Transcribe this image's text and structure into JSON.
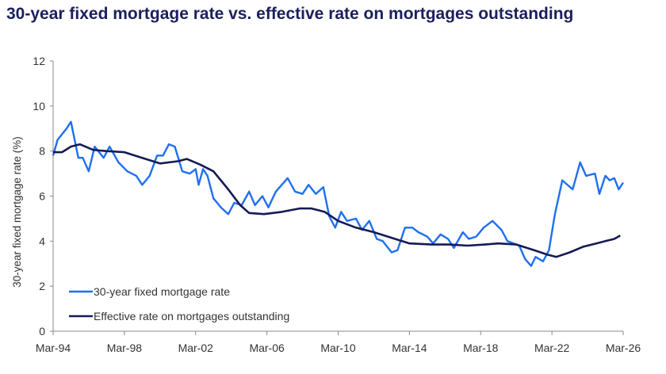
{
  "chart_data": {
    "type": "line",
    "title": "30-year fixed mortgage rate vs. effective rate on mortgages outstanding",
    "xlabel": "",
    "ylabel": "30-year fixed mortgage rate (%)",
    "ylim": [
      0,
      12
    ],
    "yticks": [
      "0",
      "2",
      "4",
      "6",
      "8",
      "10",
      "12"
    ],
    "xlim": [
      "1994-03",
      "2026-03"
    ],
    "xticks": [
      "Mar-94",
      "Mar-98",
      "Mar-02",
      "Mar-06",
      "Mar-10",
      "Mar-14",
      "Mar-18",
      "Mar-22",
      "Mar-26"
    ],
    "grid": false,
    "legend_position": "bottom-left",
    "series": [
      {
        "name": "30-year fixed mortgage rate",
        "color": "#1f6ff0",
        "points": [
          [
            "1994-03",
            7.8
          ],
          [
            "1994-06",
            8.5
          ],
          [
            "1994-12",
            9.0
          ],
          [
            "1995-03",
            9.3
          ],
          [
            "1995-08",
            7.7
          ],
          [
            "1995-11",
            7.7
          ],
          [
            "1996-03",
            7.1
          ],
          [
            "1996-07",
            8.2
          ],
          [
            "1997-01",
            7.7
          ],
          [
            "1997-05",
            8.2
          ],
          [
            "1997-11",
            7.5
          ],
          [
            "1998-05",
            7.1
          ],
          [
            "1998-11",
            6.9
          ],
          [
            "1999-03",
            6.5
          ],
          [
            "1999-08",
            6.9
          ],
          [
            "2000-01",
            7.8
          ],
          [
            "2000-05",
            7.8
          ],
          [
            "2000-09",
            8.3
          ],
          [
            "2001-01",
            8.2
          ],
          [
            "2001-06",
            7.1
          ],
          [
            "2001-11",
            7.0
          ],
          [
            "2002-03",
            7.2
          ],
          [
            "2002-05",
            6.5
          ],
          [
            "2002-08",
            7.2
          ],
          [
            "2002-11",
            6.9
          ],
          [
            "2003-03",
            5.9
          ],
          [
            "2003-08",
            5.5
          ],
          [
            "2004-01",
            5.2
          ],
          [
            "2004-05",
            5.7
          ],
          [
            "2004-10",
            5.6
          ],
          [
            "2005-03",
            6.2
          ],
          [
            "2005-07",
            5.6
          ],
          [
            "2005-12",
            6.0
          ],
          [
            "2006-04",
            5.5
          ],
          [
            "2006-09",
            6.2
          ],
          [
            "2007-05",
            6.8
          ],
          [
            "2007-10",
            6.2
          ],
          [
            "2008-03",
            6.1
          ],
          [
            "2008-07",
            6.5
          ],
          [
            "2008-12",
            6.1
          ],
          [
            "2009-05",
            6.4
          ],
          [
            "2009-09",
            5.1
          ],
          [
            "2010-01",
            4.6
          ],
          [
            "2010-05",
            5.3
          ],
          [
            "2010-09",
            4.9
          ],
          [
            "2011-03",
            5.0
          ],
          [
            "2011-07",
            4.5
          ],
          [
            "2011-12",
            4.9
          ],
          [
            "2012-05",
            4.1
          ],
          [
            "2012-09",
            4.0
          ],
          [
            "2013-03",
            3.5
          ],
          [
            "2013-07",
            3.6
          ],
          [
            "2013-12",
            4.6
          ],
          [
            "2014-05",
            4.6
          ],
          [
            "2014-09",
            4.4
          ],
          [
            "2015-03",
            4.2
          ],
          [
            "2015-07",
            3.9
          ],
          [
            "2015-12",
            4.3
          ],
          [
            "2016-05",
            4.1
          ],
          [
            "2016-09",
            3.7
          ],
          [
            "2017-03",
            4.4
          ],
          [
            "2017-07",
            4.1
          ],
          [
            "2017-12",
            4.2
          ],
          [
            "2018-05",
            4.6
          ],
          [
            "2018-11",
            4.9
          ],
          [
            "2019-05",
            4.5
          ],
          [
            "2019-09",
            4.0
          ],
          [
            "2020-05",
            3.8
          ],
          [
            "2020-09",
            3.2
          ],
          [
            "2021-01",
            2.9
          ],
          [
            "2021-04",
            3.3
          ],
          [
            "2021-09",
            3.1
          ],
          [
            "2022-01",
            3.6
          ],
          [
            "2022-05",
            5.2
          ],
          [
            "2022-10",
            6.7
          ],
          [
            "2023-05",
            6.3
          ],
          [
            "2023-10",
            7.5
          ],
          [
            "2024-02",
            6.9
          ],
          [
            "2024-08",
            7.0
          ],
          [
            "2024-11",
            6.1
          ],
          [
            "2025-03",
            6.9
          ],
          [
            "2025-06",
            6.7
          ],
          [
            "2025-09",
            6.8
          ],
          [
            "2025-12",
            6.3
          ],
          [
            "2026-03",
            6.6
          ]
        ]
      },
      {
        "name": "Effective rate on mortgages outstanding",
        "color": "#141a55",
        "points": [
          [
            "1994-03",
            7.95
          ],
          [
            "1994-09",
            7.95
          ],
          [
            "1995-03",
            8.2
          ],
          [
            "1995-09",
            8.3
          ],
          [
            "1996-06",
            8.05
          ],
          [
            "1997-03",
            8.0
          ],
          [
            "1998-03",
            7.95
          ],
          [
            "1999-03",
            7.7
          ],
          [
            "2000-03",
            7.45
          ],
          [
            "2001-03",
            7.55
          ],
          [
            "2001-09",
            7.65
          ],
          [
            "2002-06",
            7.4
          ],
          [
            "2003-03",
            7.1
          ],
          [
            "2004-01",
            6.3
          ],
          [
            "2004-09",
            5.6
          ],
          [
            "2005-03",
            5.25
          ],
          [
            "2006-01",
            5.2
          ],
          [
            "2007-01",
            5.3
          ],
          [
            "2008-01",
            5.45
          ],
          [
            "2008-09",
            5.45
          ],
          [
            "2009-06",
            5.3
          ],
          [
            "2010-03",
            4.9
          ],
          [
            "2011-03",
            4.6
          ],
          [
            "2012-03",
            4.4
          ],
          [
            "2013-03",
            4.15
          ],
          [
            "2014-03",
            3.9
          ],
          [
            "2015-06",
            3.85
          ],
          [
            "2016-06",
            3.85
          ],
          [
            "2017-06",
            3.8
          ],
          [
            "2018-06",
            3.85
          ],
          [
            "2019-03",
            3.9
          ],
          [
            "2020-03",
            3.85
          ],
          [
            "2021-03",
            3.6
          ],
          [
            "2021-12",
            3.4
          ],
          [
            "2022-06",
            3.3
          ],
          [
            "2023-03",
            3.5
          ],
          [
            "2023-12",
            3.75
          ],
          [
            "2024-06",
            3.85
          ],
          [
            "2025-03",
            4.0
          ],
          [
            "2025-09",
            4.1
          ],
          [
            "2026-01",
            4.25
          ]
        ]
      }
    ]
  }
}
